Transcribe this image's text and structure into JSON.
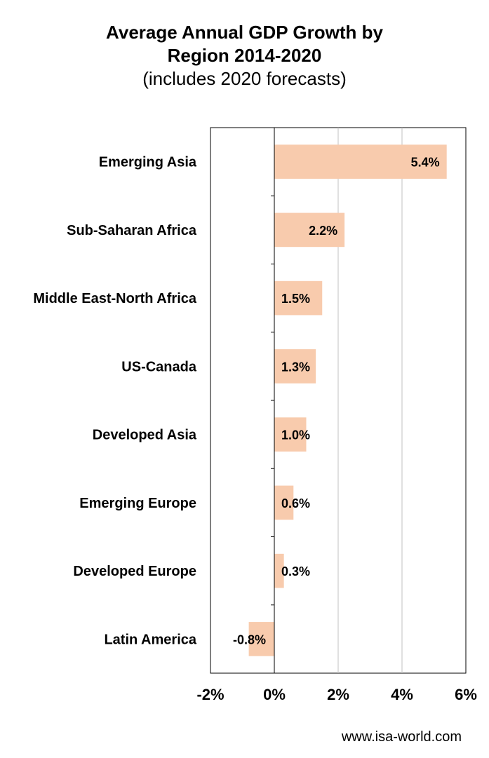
{
  "chart_data": {
    "type": "bar",
    "orientation": "horizontal",
    "title": "Average Annual GDP Growth by Region 2014-2020",
    "title_lines": [
      "Average Annual GDP Growth by",
      "Region 2014-2020"
    ],
    "subtitle": "(includes 2020 forecasts)",
    "categories": [
      "Emerging Asia",
      "Sub-Saharan Africa",
      "Middle East-North Africa",
      "US-Canada",
      "Developed Asia",
      "Emerging Europe",
      "Developed Europe",
      "Latin America"
    ],
    "values": [
      5.4,
      2.2,
      1.5,
      1.3,
      1.0,
      0.6,
      0.3,
      -0.8
    ],
    "value_labels": [
      "5.4%",
      "2.2%",
      "1.5%",
      "1.3%",
      "1.0%",
      "0.6%",
      "0.3%",
      "-0.8%"
    ],
    "xlim": [
      -2,
      6
    ],
    "x_ticks": [
      -2,
      0,
      2,
      4,
      6
    ],
    "x_tick_labels": [
      "-2%",
      "0%",
      "2%",
      "4%",
      "6%"
    ],
    "xlabel": "",
    "ylabel": "",
    "grid": "vertical",
    "legend": "none",
    "bar_color": "#f8cbad"
  },
  "source": "www.isa-world.com"
}
